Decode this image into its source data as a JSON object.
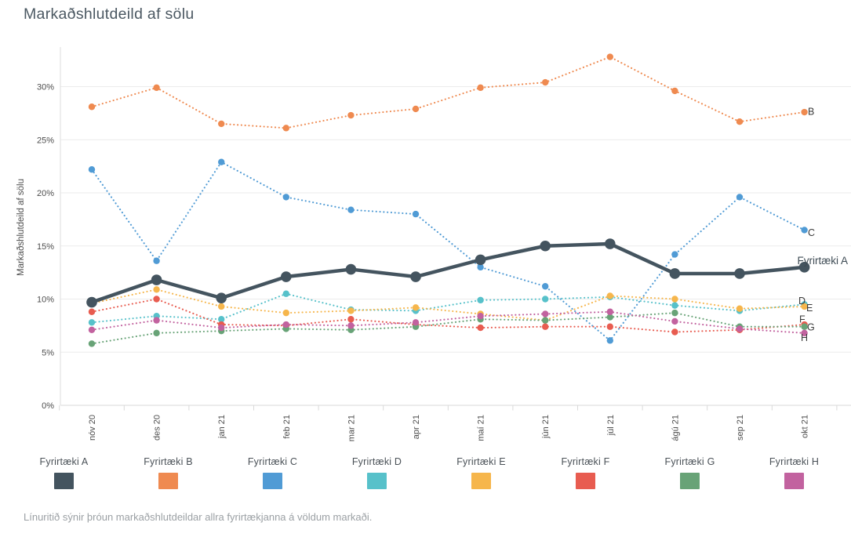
{
  "title": "Markaðshlutdeild af sölu",
  "caption": "Línuritið sýnir þróun markaðshlutdeildar allra fyrirtækjanna á völdum markaði.",
  "chart_data": {
    "type": "line",
    "title": "Markaðshlutdeild af sölu",
    "ylabel": "Markaðshlutdeild af sölu",
    "xlabel": "",
    "ylim": [
      0,
      34
    ],
    "yticks": [
      0,
      5,
      10,
      15,
      20,
      25,
      30
    ],
    "ytick_labels": [
      "0%",
      "5%",
      "10%",
      "15%",
      "20%",
      "25%",
      "30%"
    ],
    "grid": true,
    "legend_position": "bottom",
    "categories": [
      "nóv 20",
      "des 20",
      "jan 21",
      "feb 21",
      "mar 21",
      "apr 21",
      "maí 21",
      "jún 21",
      "júl 21",
      "ágú 21",
      "sep 21",
      "okt 21"
    ],
    "series": [
      {
        "name": "Fyrirtæki A",
        "end_label": "Fyrirtæki A",
        "color": "#44545f",
        "style": "solid",
        "values": [
          9.7,
          11.8,
          10.1,
          12.1,
          12.8,
          12.1,
          13.7,
          15.0,
          15.2,
          12.4,
          12.4,
          13.0
        ]
      },
      {
        "name": "Fyrirtæki B",
        "end_label": "B",
        "color": "#ef8a50",
        "style": "dotted",
        "values": [
          28.1,
          29.9,
          26.5,
          26.1,
          27.3,
          27.9,
          29.9,
          30.4,
          32.8,
          29.6,
          26.7,
          27.6
        ]
      },
      {
        "name": "Fyrirtæki C",
        "end_label": "C",
        "color": "#509bd5",
        "style": "dotted",
        "values": [
          22.2,
          13.6,
          22.9,
          19.6,
          18.4,
          18.0,
          13.0,
          11.2,
          6.1,
          14.2,
          19.6,
          16.5
        ]
      },
      {
        "name": "Fyrirtæki D",
        "end_label": "D",
        "color": "#57c1ca",
        "style": "dotted",
        "values": [
          7.8,
          8.4,
          8.1,
          10.5,
          9.0,
          8.9,
          9.9,
          10.0,
          10.2,
          9.4,
          8.9,
          9.5
        ]
      },
      {
        "name": "Fyrirtæki E",
        "end_label": "E",
        "color": "#f6b64c",
        "style": "dotted",
        "values": [
          9.6,
          10.9,
          9.3,
          8.7,
          8.9,
          9.2,
          8.6,
          8.0,
          10.3,
          10.0,
          9.1,
          9.3
        ]
      },
      {
        "name": "Fyrirtæki F",
        "end_label": "F",
        "color": "#e85c50",
        "style": "dotted",
        "values": [
          8.8,
          10.0,
          7.6,
          7.5,
          8.1,
          7.6,
          7.3,
          7.4,
          7.4,
          6.9,
          7.1,
          7.6
        ]
      },
      {
        "name": "Fyrirtæki G",
        "end_label": "G",
        "color": "#68a377",
        "style": "dotted",
        "values": [
          5.8,
          6.8,
          7.0,
          7.2,
          7.1,
          7.4,
          8.1,
          8.0,
          8.3,
          8.7,
          7.4,
          7.4
        ]
      },
      {
        "name": "Fyrirtæki H",
        "end_label": "H",
        "color": "#c2629f",
        "style": "dotted",
        "values": [
          7.1,
          8.0,
          7.3,
          7.6,
          7.5,
          7.8,
          8.4,
          8.6,
          8.8,
          7.9,
          7.2,
          6.8
        ]
      }
    ]
  }
}
